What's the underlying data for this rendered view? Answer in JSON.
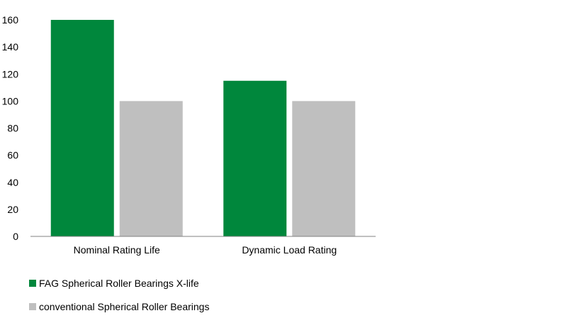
{
  "chart_data": {
    "type": "bar",
    "categories": [
      "Nominal Rating Life",
      "Dynamic Load Rating"
    ],
    "series": [
      {
        "name": "FAG Spherical Roller Bearings X-life",
        "color": "#00873c",
        "values": [
          160,
          115
        ]
      },
      {
        "name": "conventional Spherical Roller Bearings",
        "color": "#bfbfbf",
        "values": [
          100,
          100
        ]
      }
    ],
    "title": "",
    "xlabel": "",
    "ylabel": "",
    "ylim": [
      0,
      160
    ],
    "yticks": [
      0,
      20,
      40,
      60,
      80,
      100,
      120,
      140,
      160
    ],
    "grid": false,
    "legend_position": "bottom-left"
  }
}
